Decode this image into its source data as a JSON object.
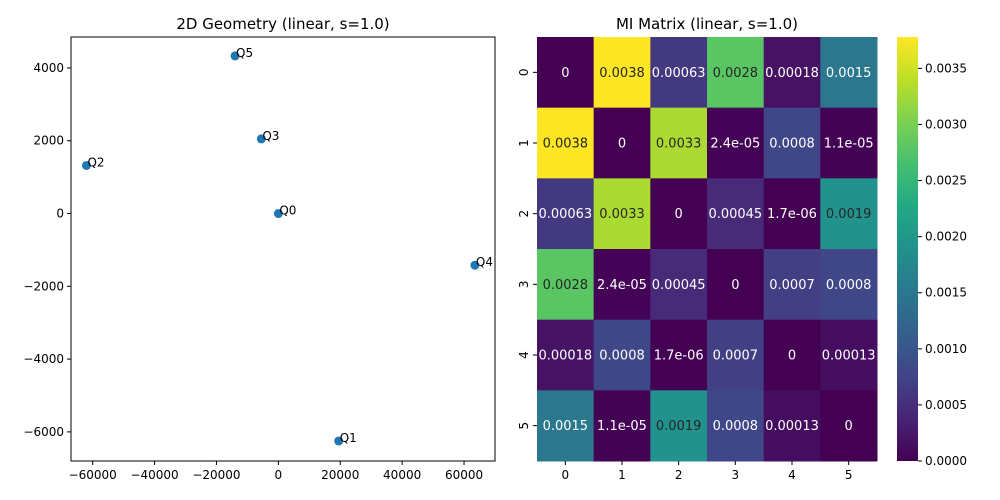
{
  "chart_data": [
    {
      "type": "scatter",
      "title": "2D Geometry (linear, s=1.0)",
      "xlabel": "",
      "ylabel": "",
      "xlim": [
        -67000,
        70000
      ],
      "ylim": [
        -6800,
        4850
      ],
      "xticks": [
        -60000,
        -40000,
        -20000,
        0,
        20000,
        40000,
        60000
      ],
      "yticks": [
        -6000,
        -4000,
        -2000,
        0,
        2000,
        4000
      ],
      "xtick_labels": [
        "−60000",
        "−40000",
        "−20000",
        "0",
        "20000",
        "40000",
        "60000"
      ],
      "ytick_labels": [
        "−6000",
        "−4000",
        "−2000",
        "0",
        "2000",
        "4000"
      ],
      "grid": false,
      "marker_color": "#1f77b4",
      "points": [
        {
          "label": "Q0",
          "x": 0,
          "y": 0
        },
        {
          "label": "Q1",
          "x": 19500,
          "y": -6250
        },
        {
          "label": "Q2",
          "x": -62000,
          "y": 1320
        },
        {
          "label": "Q3",
          "x": -5500,
          "y": 2050
        },
        {
          "label": "Q4",
          "x": 63500,
          "y": -1420
        },
        {
          "label": "Q5",
          "x": -14000,
          "y": 4330
        }
      ]
    },
    {
      "type": "heatmap",
      "title": "MI Matrix (linear, s=1.0)",
      "colormap": "viridis",
      "row_labels": [
        "0",
        "1",
        "2",
        "3",
        "4",
        "5"
      ],
      "col_labels": [
        "0",
        "1",
        "2",
        "3",
        "4",
        "5"
      ],
      "vmin": 0,
      "vmax": 0.00378,
      "colorbar_ticks": [
        0.0,
        0.0005,
        0.001,
        0.0015,
        0.002,
        0.0025,
        0.003,
        0.0035
      ],
      "colorbar_tick_labels": [
        "0.0000",
        "0.0005",
        "0.0010",
        "0.0015",
        "0.0020",
        "0.0025",
        "0.0030",
        "0.0035"
      ],
      "values": [
        [
          0,
          0.0038,
          0.00063,
          0.0028,
          0.00018,
          0.0015
        ],
        [
          0.0038,
          0,
          0.0033,
          2.4e-05,
          0.0008,
          1.1e-05
        ],
        [
          0.00063,
          0.0033,
          0,
          0.00045,
          1.7e-06,
          0.0019
        ],
        [
          0.0028,
          2.4e-05,
          0.00045,
          0,
          0.0007,
          0.0008
        ],
        [
          0.00018,
          0.0008,
          1.7e-06,
          0.0007,
          0,
          0.00013
        ],
        [
          0.0015,
          1.1e-05,
          0.0019,
          0.0008,
          0.00013,
          0
        ]
      ],
      "annotations": [
        [
          "0",
          "0.0038",
          "0.00063",
          "0.0028",
          "0.00018",
          "0.0015"
        ],
        [
          "0.0038",
          "0",
          "0.0033",
          "2.4e-05",
          "0.0008",
          "1.1e-05"
        ],
        [
          "0.00063",
          "0.0033",
          "0",
          "0.00045",
          "1.7e-06",
          "0.0019"
        ],
        [
          "0.0028",
          "2.4e-05",
          "0.00045",
          "0",
          "0.0007",
          "0.0008"
        ],
        [
          "0.00018",
          "0.0008",
          "1.7e-06",
          "0.0007",
          "0",
          "0.00013"
        ],
        [
          "0.0015",
          "1.1e-05",
          "0.0019",
          "0.0008",
          "0.00013",
          "0"
        ]
      ]
    }
  ]
}
